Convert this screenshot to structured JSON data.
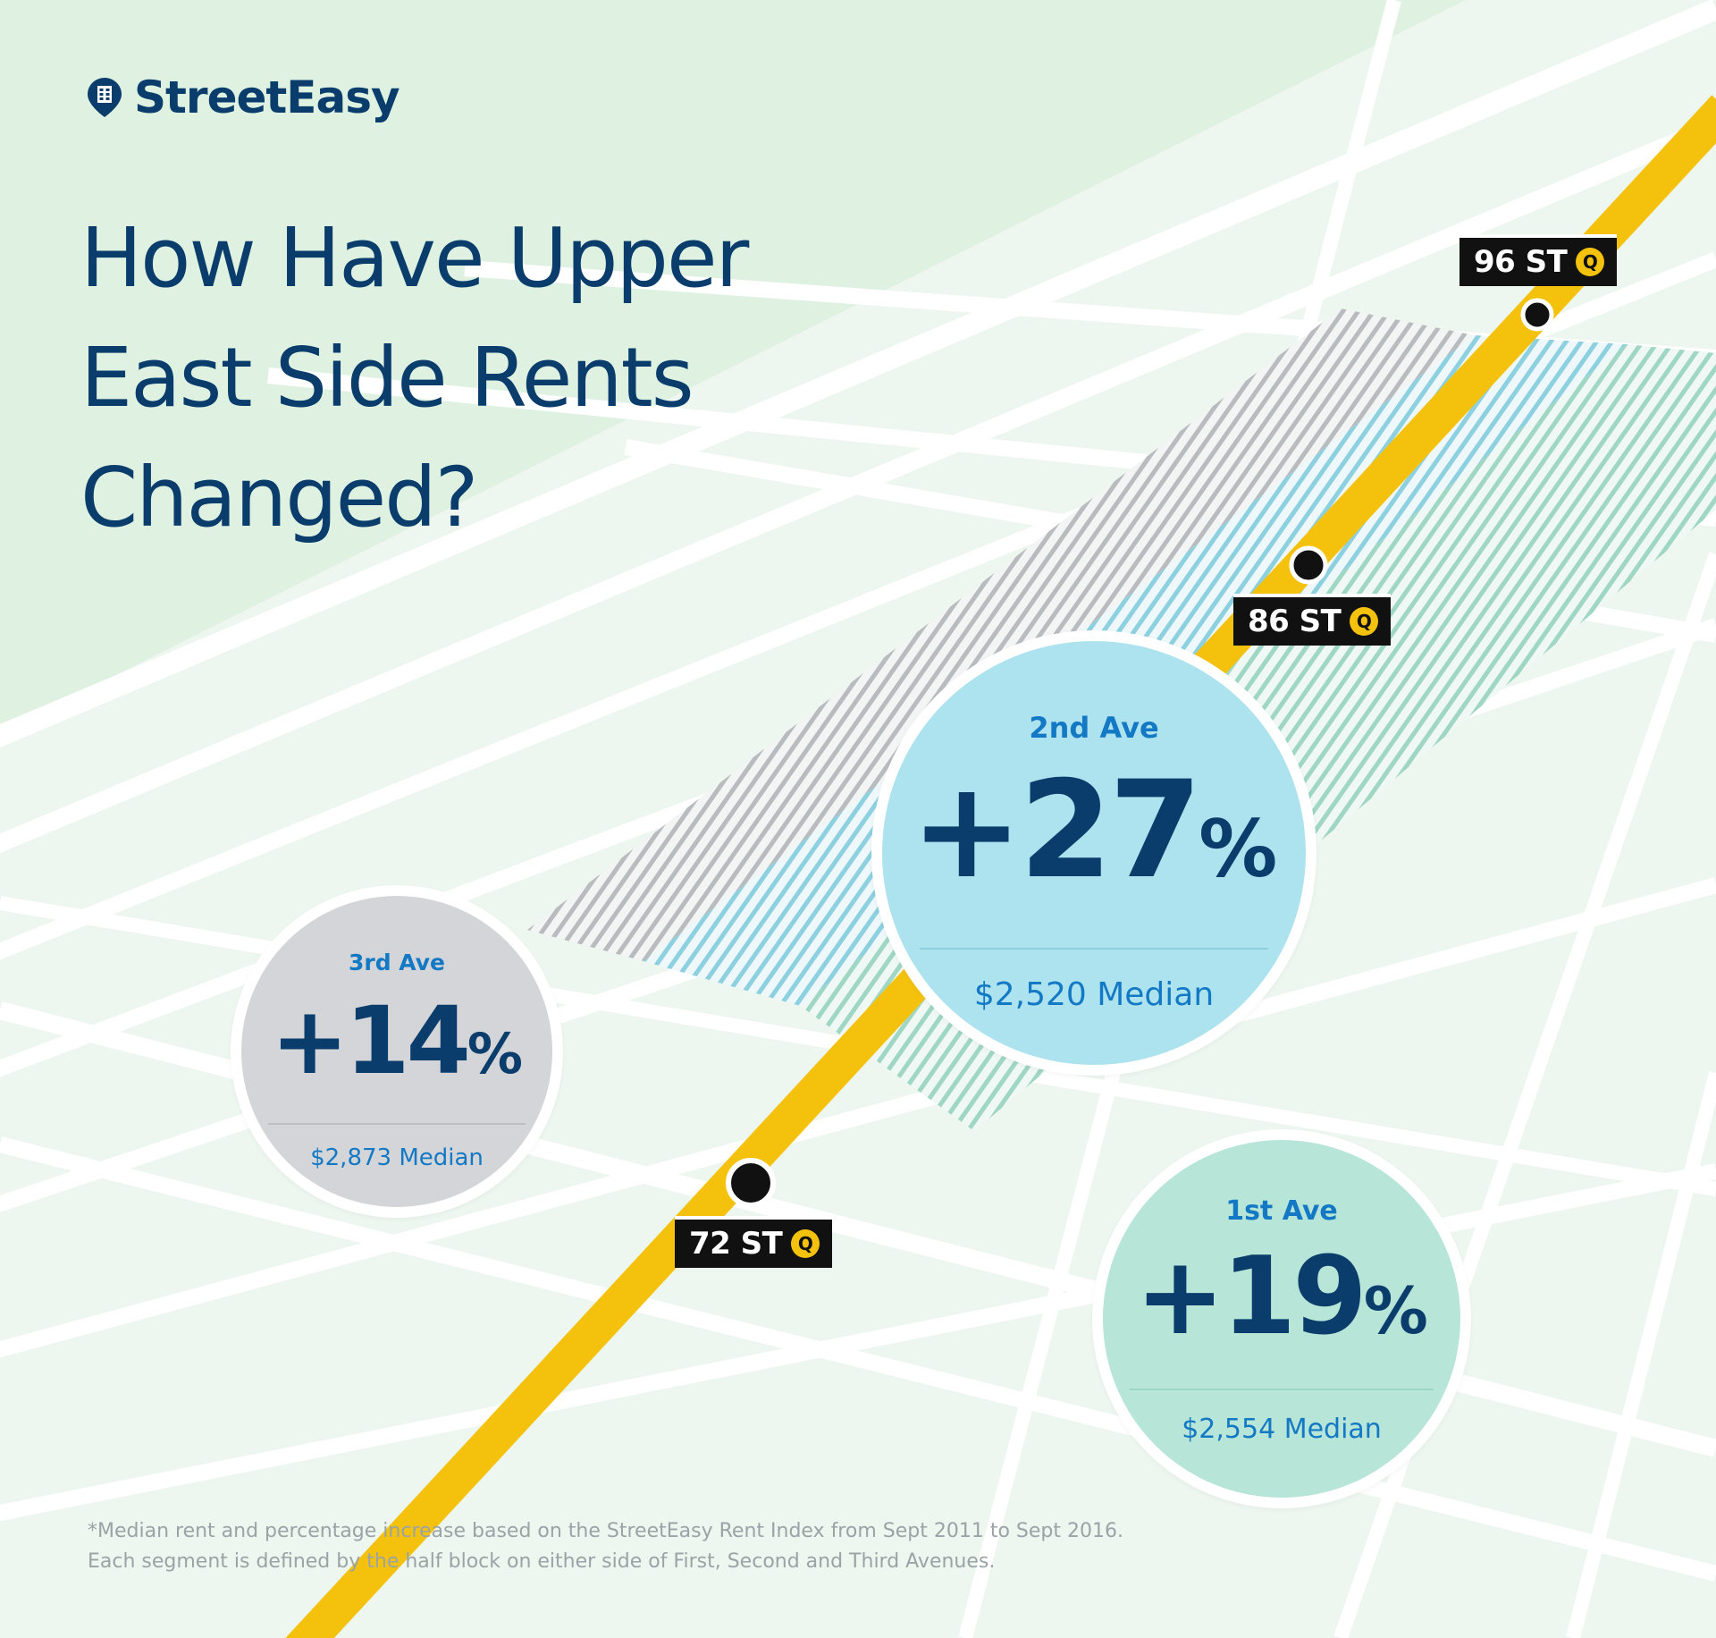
{
  "brand": {
    "name": "StreetEasy",
    "logo_icon": "building-pin-icon",
    "colors": {
      "navy": "#0a3d6b",
      "blue": "#1479c4",
      "subway_yellow": "#f4c20d"
    }
  },
  "title": {
    "lines": [
      "How Have Upper",
      "East Side Rents",
      "Changed?"
    ]
  },
  "segments": [
    {
      "id": "2nd",
      "avenue": "2nd Ave",
      "sign": "+",
      "value": "27",
      "unit": "%",
      "median": "$2,520 Median",
      "color": "#ade3ee"
    },
    {
      "id": "3rd",
      "avenue": "3rd Ave",
      "sign": "+",
      "value": "14",
      "unit": "%",
      "median": "$2,873 Median",
      "color": "#d4d5d8"
    },
    {
      "id": "1st",
      "avenue": "1st Ave",
      "sign": "+",
      "value": "19",
      "unit": "%",
      "median": "$2,554 Median",
      "color": "#b7e5d8"
    }
  ],
  "stations": [
    {
      "name": "96 ST",
      "line": "Q"
    },
    {
      "name": "86 ST",
      "line": "Q"
    },
    {
      "name": "72 ST",
      "line": "Q"
    }
  ],
  "footnote": [
    "*Median rent and percentage increase based on the StreetEasy Rent Index from Sept 2011 to Sept 2016.",
    "Each segment is defined by the half block on either side of First, Second and Third Avenues."
  ]
}
